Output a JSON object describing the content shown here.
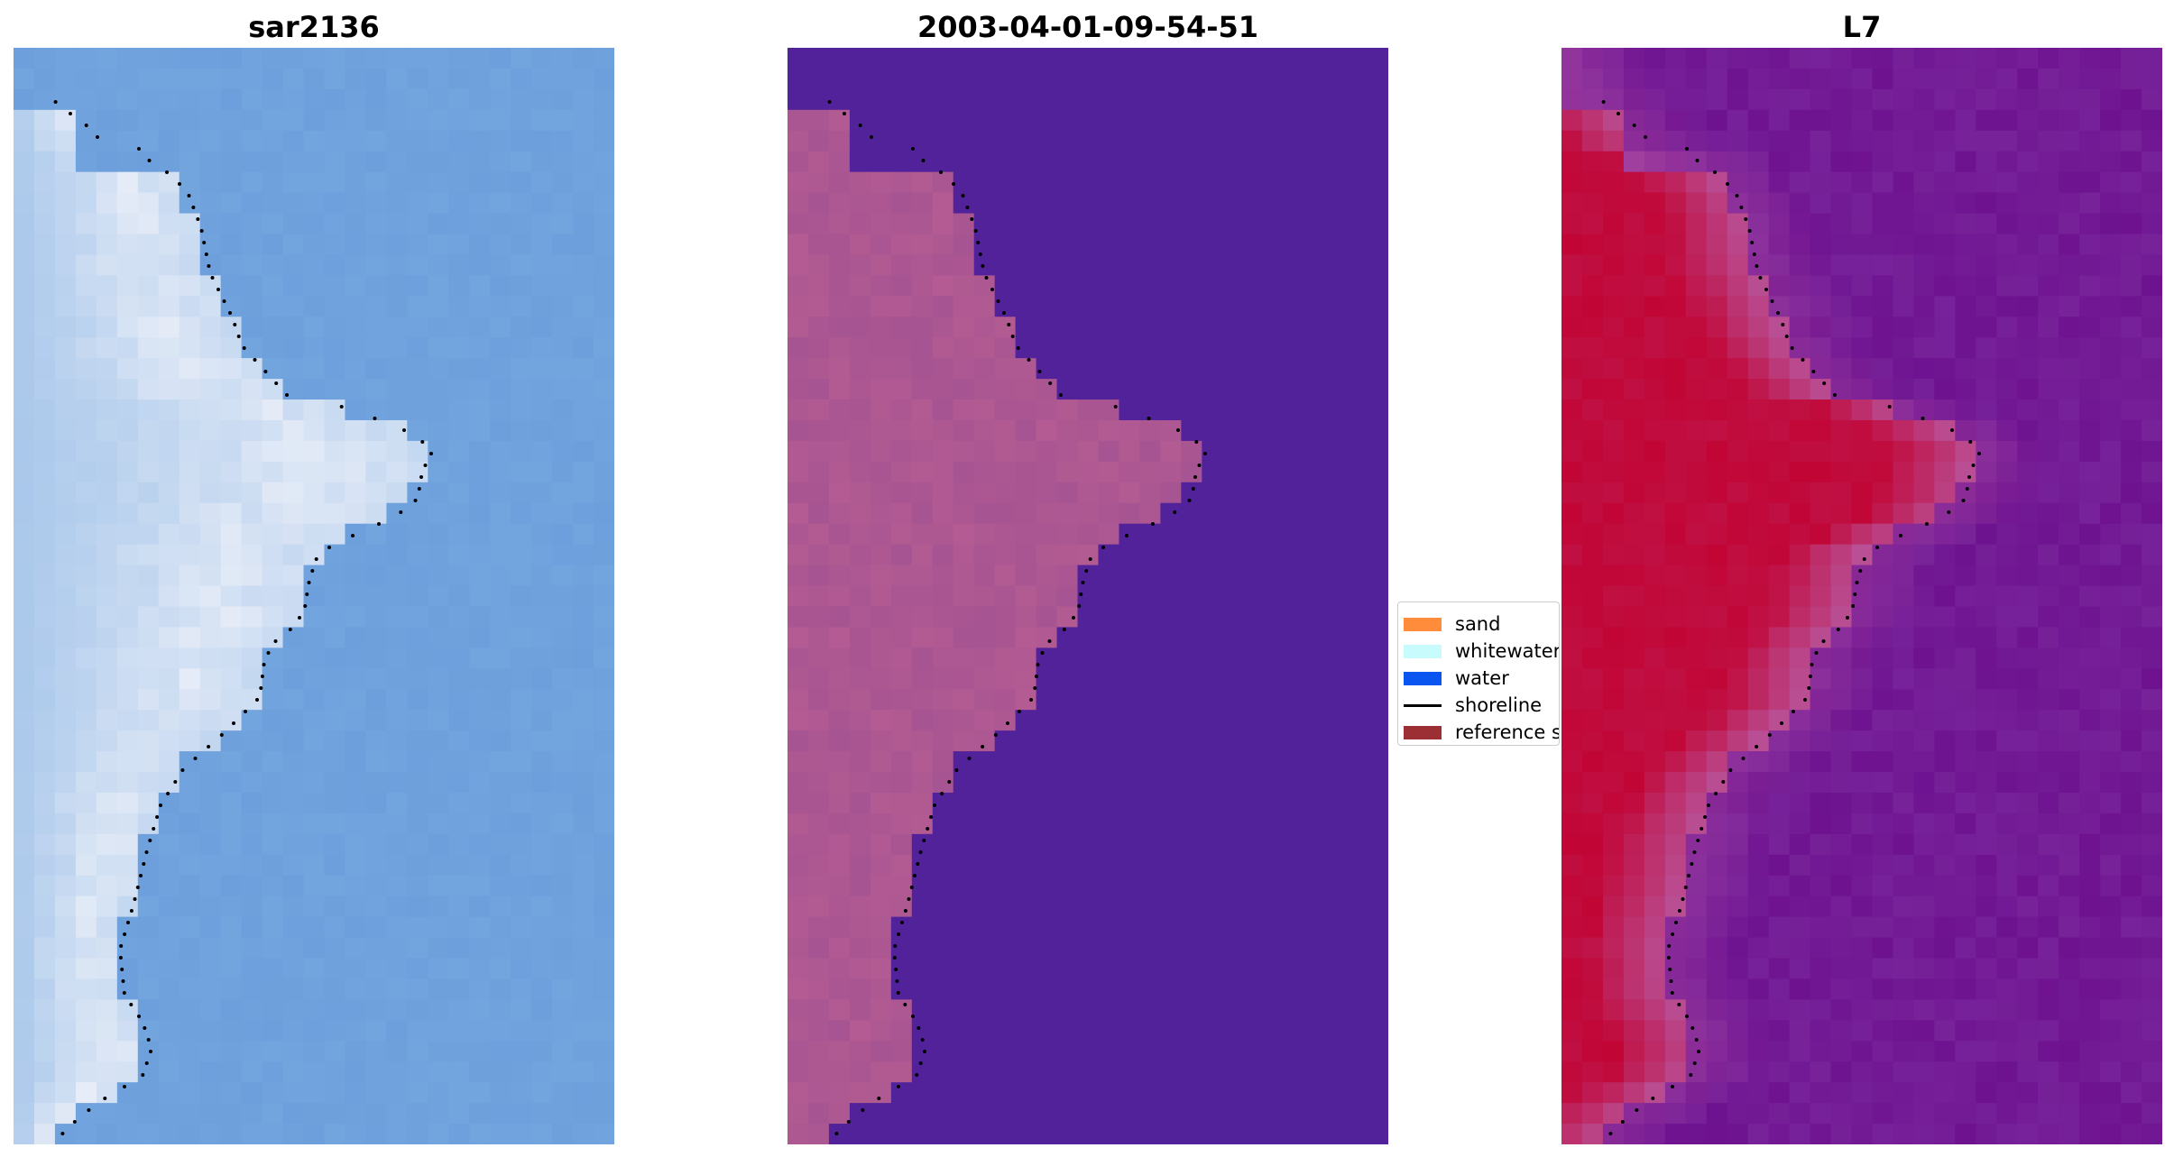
{
  "panels": [
    {
      "title": "sar2136",
      "color_theme": "rgb"
    },
    {
      "title": "2003-04-01-09-54-51",
      "color_theme": "classified"
    },
    {
      "title": "L7",
      "color_theme": "index"
    }
  ],
  "legend": {
    "items": [
      {
        "label": "sand",
        "color": "#ff8c3a",
        "kind": "patch"
      },
      {
        "label": "whitewater",
        "color": "#c8fbfb",
        "kind": "patch"
      },
      {
        "label": "water",
        "color": "#0a55f0",
        "kind": "patch"
      },
      {
        "label": "shoreline",
        "color": "#000000",
        "kind": "line"
      },
      {
        "label": "reference shoreline buffer",
        "color": "#9b2f33",
        "kind": "patch"
      }
    ]
  },
  "colors": {
    "water_class": "#52229a",
    "land_class": "#b35b92",
    "index_high": "#c10535",
    "index_low": "#6e1290",
    "rgb_water": "#6d9fdc",
    "rgb_sand": "#e9eef8"
  }
}
